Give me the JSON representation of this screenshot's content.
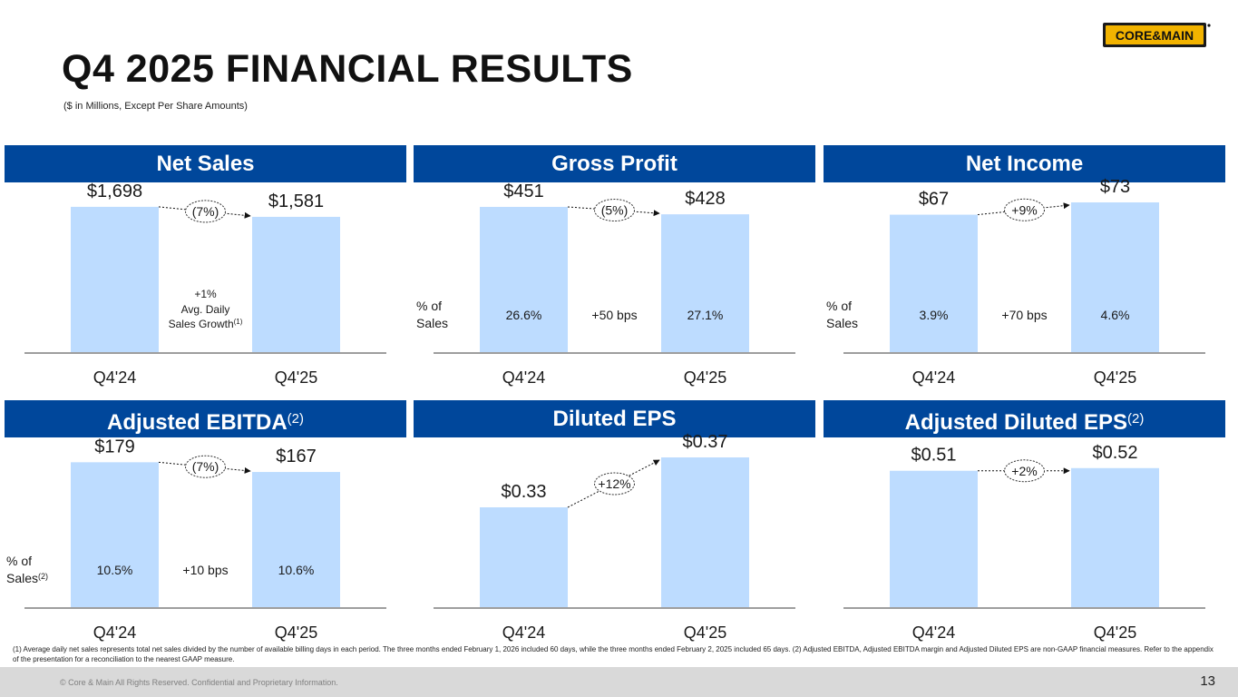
{
  "page": {
    "title": "Q4 2025 FINANCIAL RESULTS",
    "subtitle": "($ in Millions, Except Per Share Amounts)",
    "logo_text": "CORE&MAIN",
    "footnote": "(1) Average daily net sales represents total net sales divided by the number of available billing days in each period. The three months ended February 1, 2026  included 60 days, while the three months ended February 2, 2025 included 65 days. (2) Adjusted EBITDA, Adjusted EBITDA margin and Adjusted Diluted EPS are non-GAAP financial measures. Refer to the appendix of the presentation for a reconciliation to the nearest GAAP measure.",
    "copyright": "© Core & Main  All Rights Reserved. Confidential and Proprietary Information.",
    "page_number": "13"
  },
  "colors": {
    "header": "#00479b",
    "bar": "#bddcff",
    "axis": "#7f7f7f"
  },
  "chart_data": [
    {
      "type": "bar",
      "title": "Net Sales",
      "title_sup": "",
      "categories": [
        "Q4'24",
        "Q4'25"
      ],
      "values": [
        1698,
        1581
      ],
      "value_labels": [
        "$1,698",
        "$1,581"
      ],
      "change_label": "(7%)",
      "ylim": [
        0,
        1750
      ],
      "margin_label": [],
      "margin_values": [],
      "margin_change": "",
      "note_lines": [
        "+1%",
        "Avg. Daily",
        "Sales Growth"
      ],
      "note_sup": "(1)"
    },
    {
      "type": "bar",
      "title": "Gross Profit",
      "title_sup": "",
      "categories": [
        "Q4'24",
        "Q4'25"
      ],
      "values": [
        451,
        428
      ],
      "value_labels": [
        "$451",
        "$428"
      ],
      "change_label": "(5%)",
      "ylim": [
        0,
        465
      ],
      "margin_label": [
        "% of",
        "Sales"
      ],
      "margin_label_sup": "",
      "margin_values": [
        "26.6%",
        "27.1%"
      ],
      "margin_change": "+50 bps",
      "note_lines": []
    },
    {
      "type": "bar",
      "title": "Net Income",
      "title_sup": "",
      "categories": [
        "Q4'24",
        "Q4'25"
      ],
      "values": [
        67,
        73
      ],
      "value_labels": [
        "$67",
        "$73"
      ],
      "change_label": "+9%",
      "ylim": [
        0,
        73
      ],
      "margin_label": [
        "% of",
        "Sales"
      ],
      "margin_label_sup": "",
      "margin_values": [
        "3.9%",
        "4.6%"
      ],
      "margin_change": "+70 bps",
      "note_lines": []
    },
    {
      "type": "bar",
      "title": "Adjusted EBITDA",
      "title_sup": "(2)",
      "categories": [
        "Q4'24",
        "Q4'25"
      ],
      "values": [
        179,
        167
      ],
      "value_labels": [
        "$179",
        "$167"
      ],
      "change_label": "(7%)",
      "ylim": [
        0,
        185
      ],
      "margin_label": [
        "% of",
        "Sales"
      ],
      "margin_label_sup": "(2)",
      "margin_values": [
        "10.5%",
        "10.6%"
      ],
      "margin_change": "+10 bps",
      "note_lines": []
    },
    {
      "type": "bar",
      "title": "Diluted EPS",
      "title_sup": "",
      "categories": [
        "Q4'24",
        "Q4'25"
      ],
      "values": [
        0.33,
        0.37
      ],
      "value_labels": [
        "$0.33",
        "$0.37"
      ],
      "change_label": "+12%",
      "ylim": [
        0.25,
        0.37
      ],
      "margin_label": [],
      "margin_values": [],
      "margin_change": "",
      "note_lines": []
    },
    {
      "type": "bar",
      "title": "Adjusted Diluted EPS",
      "title_sup": "(2)",
      "categories": [
        "Q4'24",
        "Q4'25"
      ],
      "values": [
        0.51,
        0.52
      ],
      "value_labels": [
        "$0.51",
        "$0.52"
      ],
      "change_label": "+2%",
      "ylim": [
        0,
        0.56
      ],
      "margin_label": [],
      "margin_values": [],
      "margin_change": "",
      "note_lines": []
    }
  ]
}
